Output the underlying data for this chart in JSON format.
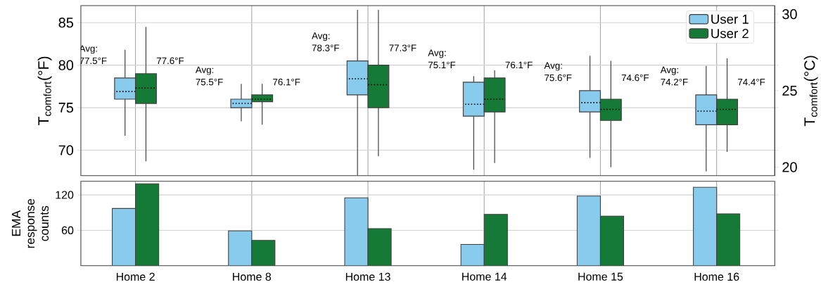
{
  "chart_data": [
    {
      "type": "box",
      "categories": [
        null,
        null,
        null,
        null,
        null,
        null
      ],
      "ylabel": "T$_{comfort}$(°F)",
      "y2label": "T$_{comfort}$(°C)",
      "ylim": [
        67,
        87
      ],
      "yticks": [
        70,
        75,
        80,
        85
      ],
      "y2lim": [
        19.44,
        30.56
      ],
      "y2ticks": [
        20,
        25,
        30
      ],
      "grid": true,
      "legend": "top right",
      "tick_labels": "y",
      "series": [
        {
          "name": "User 1",
          "color": "#89cbec",
          "boxes": [
            {
              "low": 71.7,
              "q1": 76,
              "median": 76.9,
              "q3": 78.5,
              "high": 81.8
            },
            {
              "low": 73.4,
              "q1": 75,
              "median": 75.5,
              "q3": 76,
              "high": 77.8
            },
            {
              "low": 67,
              "q1": 76.5,
              "median": 78.4,
              "q3": 80.5,
              "high": 86.5
            },
            {
              "low": 67.7,
              "q1": 74,
              "median": 75.4,
              "q3": 78,
              "high": 78.7
            },
            {
              "low": 69.1,
              "q1": 74.5,
              "median": 75.6,
              "q3": 77,
              "high": 81.1
            },
            {
              "low": 67.5,
              "q1": 73,
              "median": 74.6,
              "q3": 76.5,
              "high": 79.9
            }
          ]
        },
        {
          "name": "User 2",
          "color": "#157a35",
          "boxes": [
            {
              "low": 68.7,
              "q1": 75.5,
              "median": 77.3,
              "q3": 79,
              "high": 84.5
            },
            {
              "low": 73,
              "q1": 75.7,
              "median": 76,
              "q3": 76.5,
              "high": 77.8
            },
            {
              "low": 69.3,
              "q1": 75,
              "median": 77.7,
              "q3": 80,
              "high": 86.5
            },
            {
              "low": 68.5,
              "q1": 74.5,
              "median": 76,
              "q3": 78.5,
              "high": 79.4
            },
            {
              "low": 68,
              "q1": 73.5,
              "median": 74.8,
              "q3": 76,
              "high": 80.5
            },
            {
              "low": 69.8,
              "q1": 73,
              "median": 74.8,
              "q3": 76,
              "high": 80.8
            }
          ]
        }
      ],
      "annotations": [
        "Avg: 77.5°F",
        "77.6°F",
        "Avg: 75.5°F",
        "76.1°F",
        "Avg: 78.3°F",
        "77.3°F",
        "Avg: 75.1°F",
        "76.1°F",
        "Avg: 75.6°F",
        "74.6°F",
        "Avg: 74.2°F",
        "74.4°F"
      ]
    },
    {
      "type": "bar",
      "categories": [
        "Home 2",
        "Home 8",
        "Home 13",
        "Home 14",
        "Home 15",
        "Home 16"
      ],
      "ylabel": "EMA response counts",
      "ylim": [
        0,
        143
      ],
      "yticks": [
        60,
        120
      ],
      "grid": true,
      "series": [
        {
          "color": "#89cbec",
          "values": [
            97,
            59,
            115,
            36,
            118,
            133
          ]
        },
        {
          "color": "#157a35",
          "values": [
            139,
            43,
            63,
            87,
            84,
            88
          ]
        }
      ]
    }
  ]
}
